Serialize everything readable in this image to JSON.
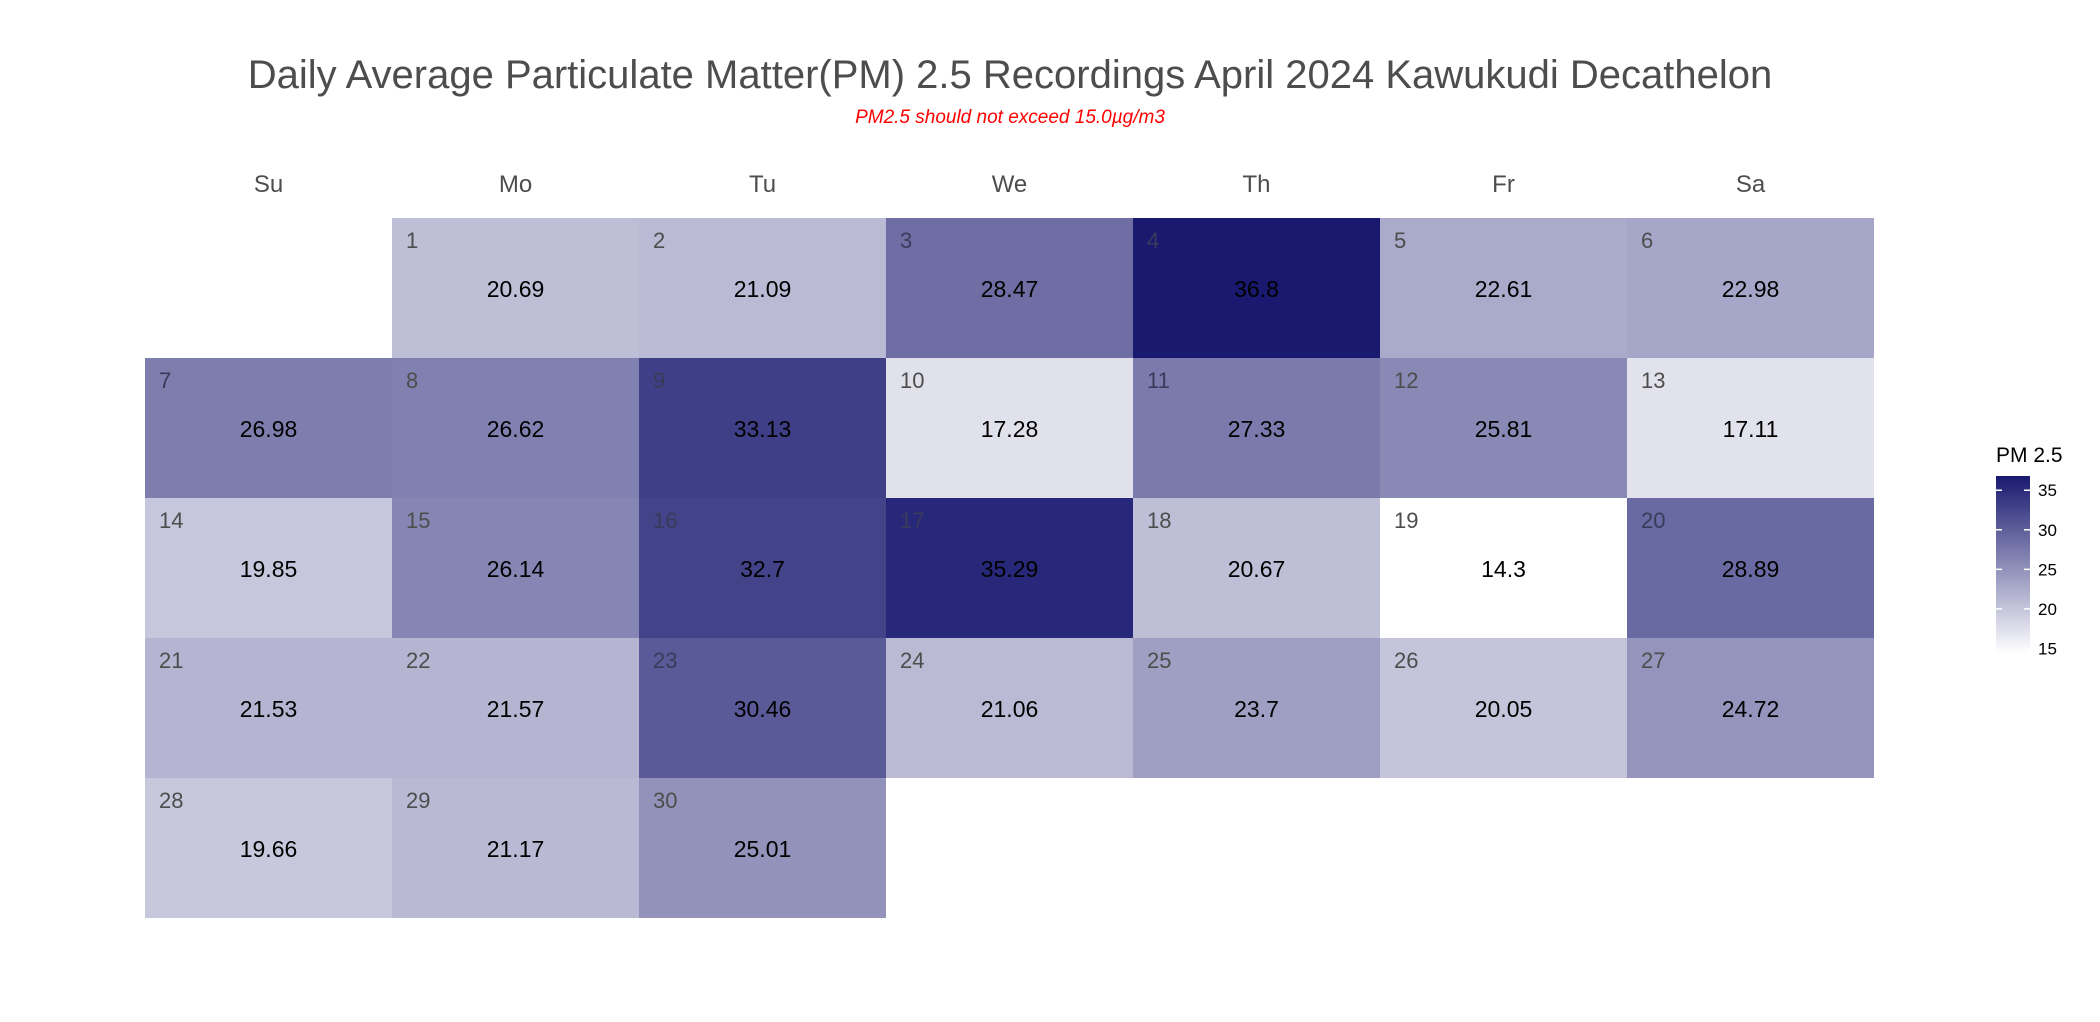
{
  "chart_data": {
    "type": "heatmap",
    "title": "Daily Average Particulate Matter(PM) 2.5 Recordings April 2024 Kawukudi Decathelon",
    "subtitle": "PM2.5 should not exceed 15.0µg/m3",
    "weekdays": [
      "Su",
      "Mo",
      "Tu",
      "We",
      "Th",
      "Fr",
      "Sa"
    ],
    "first_weekday_index": 1,
    "days": [
      1,
      2,
      3,
      4,
      5,
      6,
      7,
      8,
      9,
      10,
      11,
      12,
      13,
      14,
      15,
      16,
      17,
      18,
      19,
      20,
      21,
      22,
      23,
      24,
      25,
      26,
      27,
      28,
      29,
      30
    ],
    "values": [
      20.69,
      21.09,
      28.47,
      36.8,
      22.61,
      22.98,
      26.98,
      26.62,
      33.13,
      17.28,
      27.33,
      25.81,
      17.11,
      19.85,
      26.14,
      32.7,
      35.29,
      20.67,
      14.3,
      28.89,
      21.53,
      21.57,
      30.46,
      21.06,
      23.7,
      20.05,
      24.72,
      19.66,
      21.17,
      25.01
    ],
    "legend": {
      "title": "PM 2.5",
      "ticks": [
        15,
        20,
        25,
        30,
        35
      ],
      "range": [
        14.3,
        36.8
      ],
      "color_low": "#ffffff",
      "color_high": "#191970"
    }
  }
}
